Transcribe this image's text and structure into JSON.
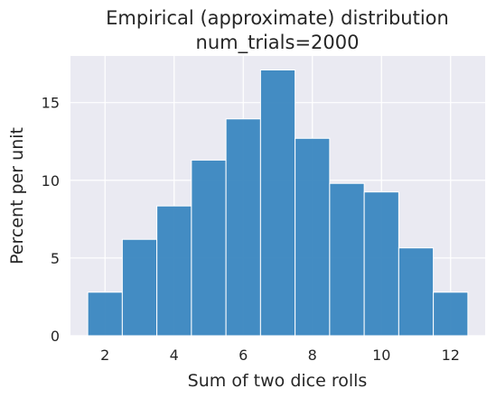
{
  "colors": {
    "plot_background": "#eaeaf2",
    "grid": "#ffffff",
    "bar_fill": "#3a87c0",
    "bar_edge": "#ffffff"
  },
  "chart_data": {
    "type": "bar",
    "title": [
      "Empirical (approximate) distribution",
      "num_trials=2000"
    ],
    "xlabel": "Sum of two dice rolls",
    "ylabel": "Percent per unit",
    "xlim": [
      1.0,
      13.0
    ],
    "ylim": [
      0,
      18
    ],
    "grid": true,
    "x_ticks": [
      2,
      4,
      6,
      8,
      10,
      12
    ],
    "y_ticks": [
      0,
      5,
      10,
      15
    ],
    "bins": [
      {
        "start": 1.5,
        "end": 2.5,
        "value": 2.8
      },
      {
        "start": 2.5,
        "end": 3.5,
        "value": 6.2
      },
      {
        "start": 3.5,
        "end": 4.5,
        "value": 8.35
      },
      {
        "start": 4.5,
        "end": 5.5,
        "value": 11.3
      },
      {
        "start": 5.5,
        "end": 6.5,
        "value": 13.95
      },
      {
        "start": 6.5,
        "end": 7.5,
        "value": 17.1
      },
      {
        "start": 7.5,
        "end": 8.5,
        "value": 12.7
      },
      {
        "start": 8.5,
        "end": 9.5,
        "value": 9.8
      },
      {
        "start": 9.5,
        "end": 10.5,
        "value": 9.25
      },
      {
        "start": 10.5,
        "end": 11.5,
        "value": 5.65
      },
      {
        "start": 11.5,
        "end": 12.5,
        "value": 2.8
      }
    ]
  }
}
